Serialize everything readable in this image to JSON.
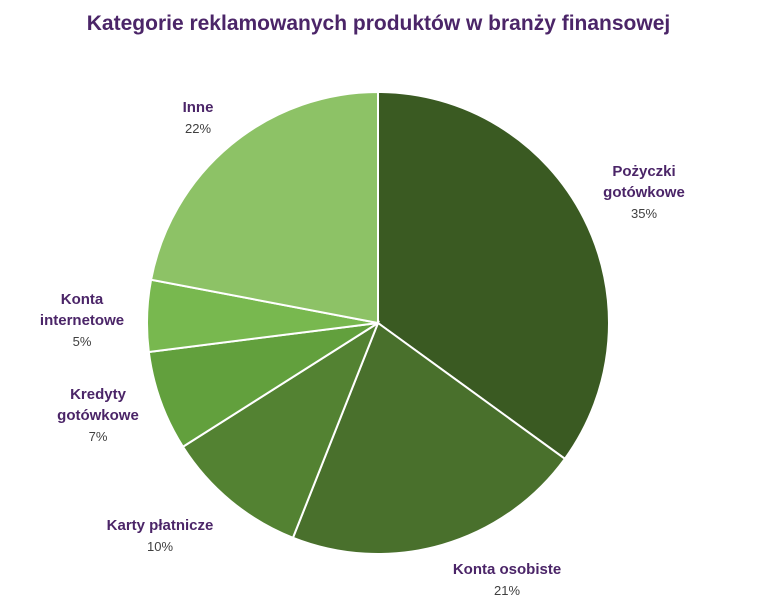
{
  "chart_data": {
    "type": "pie",
    "title": "Kategorie reklamowanych produktów w branży finansowej",
    "categories": [
      "Pożyczki gotówkowe",
      "Konta osobiste",
      "Karty płatnicze",
      "Kredyty gotówkowe",
      "Konta internetowe",
      "Inne"
    ],
    "label_lines": [
      [
        "Pożyczki",
        "gotówkowe"
      ],
      [
        "Konta osobiste"
      ],
      [
        "Karty płatnicze"
      ],
      [
        "Kredyty",
        "gotówkowe"
      ],
      [
        "Konta",
        "internetowe"
      ],
      [
        "Inne"
      ]
    ],
    "values": [
      35,
      21,
      10,
      7,
      5,
      22
    ],
    "value_labels": [
      "35%",
      "21%",
      "10%",
      "7%",
      "5%",
      "22%"
    ],
    "colors": [
      "#3a5a22",
      "#49702c",
      "#538232",
      "#62a03d",
      "#78b84f",
      "#8dc266"
    ],
    "start_angle_deg": 0,
    "direction": "clockwise",
    "legend": "none",
    "grid": false
  }
}
